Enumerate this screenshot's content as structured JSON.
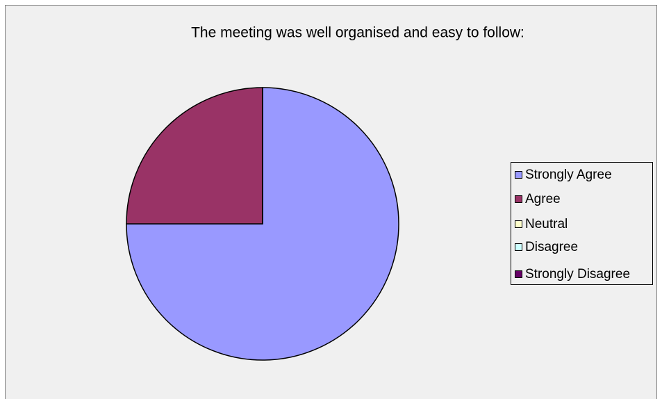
{
  "chart_data": {
    "type": "pie",
    "title": "The meeting was well organised and easy to follow:",
    "categories": [
      "Strongly Agree",
      "Agree",
      "Neutral",
      "Disagree",
      "Strongly Disagree"
    ],
    "values": [
      75,
      25,
      0,
      0,
      0
    ],
    "colors": [
      "#9999ff",
      "#993366",
      "#ffffcc",
      "#ccffff",
      "#660066"
    ],
    "legend": "right"
  }
}
